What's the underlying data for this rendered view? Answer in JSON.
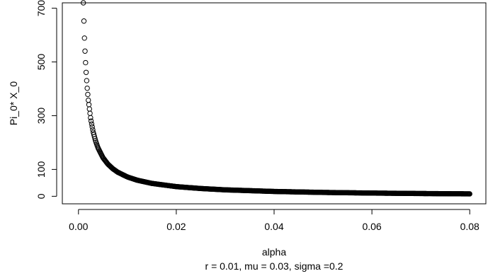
{
  "chart_data": {
    "type": "scatter",
    "xlabel": "alpha",
    "ylabel": "Pi_0* X_0",
    "subtitle": "r = 0.01, mu = 0.03, sigma =0.2",
    "x_ticks": [
      "0.00",
      "0.02",
      "0.04",
      "0.06",
      "0.08"
    ],
    "y_ticks": [
      "0",
      "100",
      "300",
      "500",
      "700"
    ],
    "xlim": [
      -0.0033,
      0.0833
    ],
    "ylim": [
      -28,
      720
    ],
    "marker": "open-circle",
    "series": [
      {
        "x": [
          0.001,
          0.0012,
          0.0014,
          0.0016,
          0.0018,
          0.002,
          0.0025,
          0.003,
          0.0035,
          0.004,
          0.005,
          0.006,
          0.007,
          0.008,
          0.01,
          0.012,
          0.015,
          0.02,
          0.025,
          0.03,
          0.04,
          0.05,
          0.06,
          0.07,
          0.08
        ],
        "y": [
          720,
          600,
          514,
          450,
          400,
          360,
          288,
          240,
          206,
          180,
          144,
          120,
          103,
          90,
          72,
          60,
          48,
          36,
          29,
          24,
          18,
          14.4,
          12,
          10.3,
          9
        ]
      }
    ]
  }
}
